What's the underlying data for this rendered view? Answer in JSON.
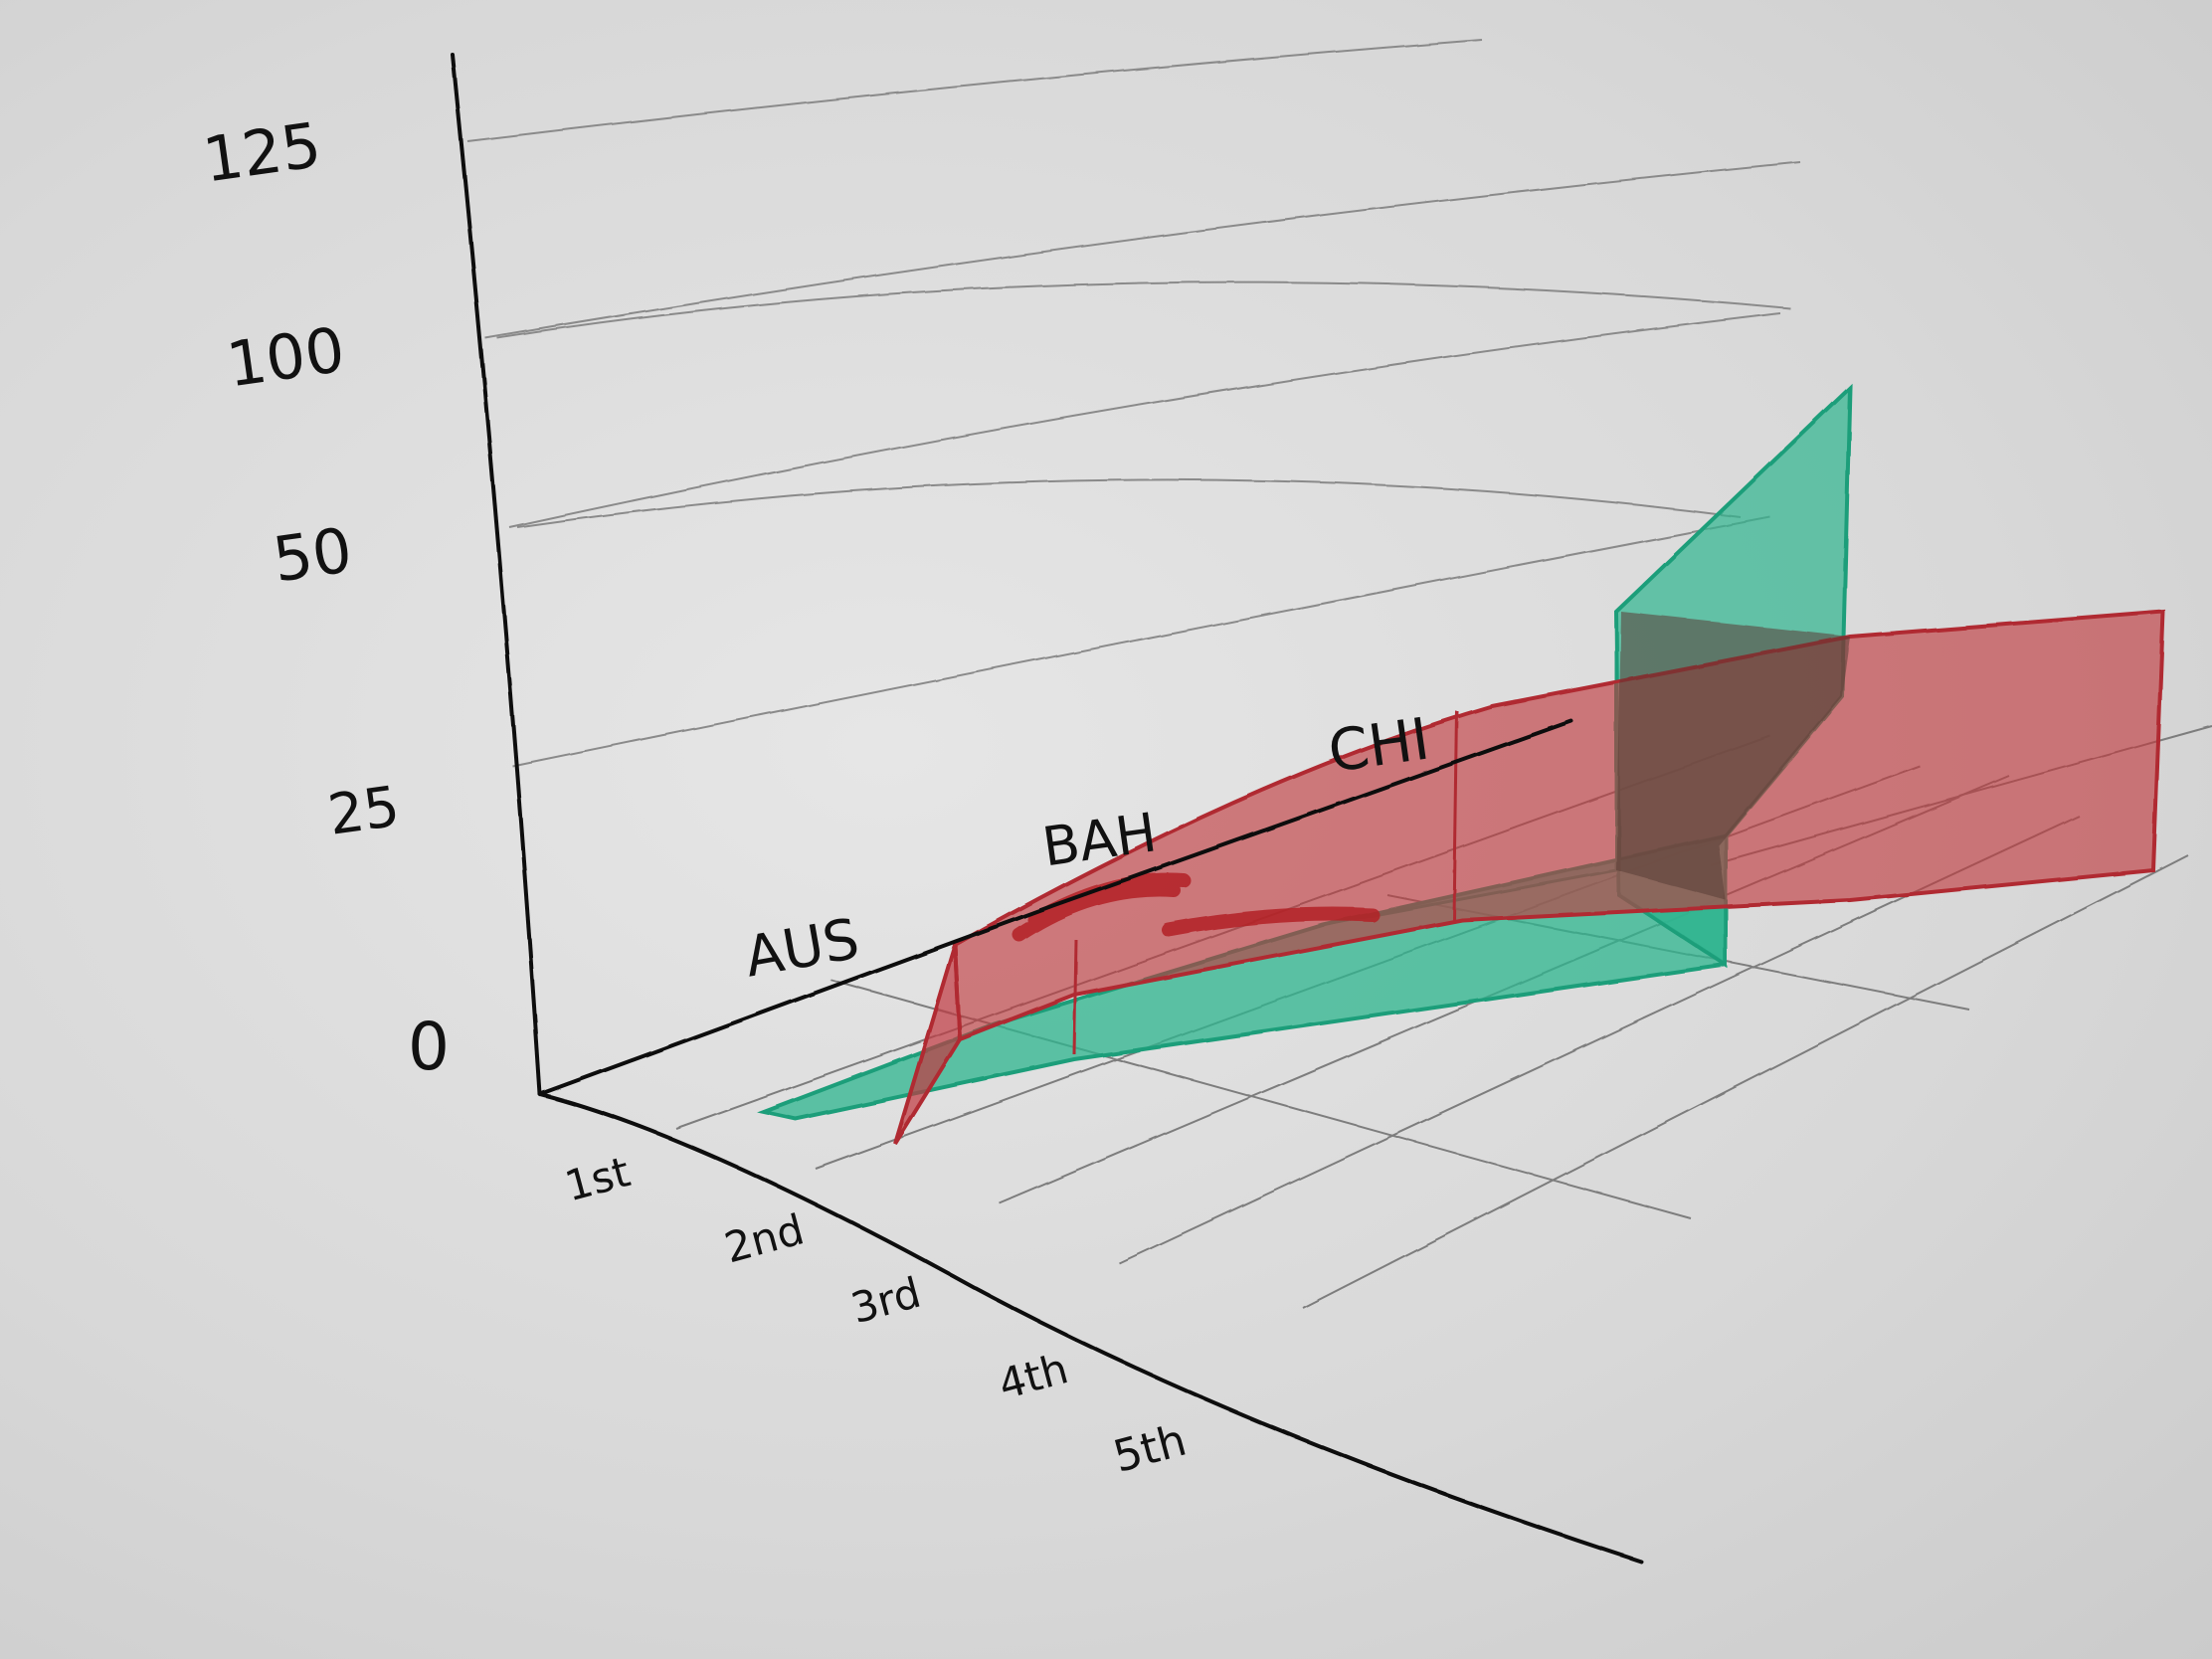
{
  "chart_data": {
    "type": "area",
    "style": "hand-drawn 3D ribbon chart",
    "title": "",
    "y_axis": {
      "tick_labels": [
        "0",
        "25",
        "50",
        "100",
        "125"
      ]
    },
    "x_axis": {
      "tick_labels": [
        "1st",
        "2nd",
        "3rd",
        "4th",
        "5th"
      ]
    },
    "depth_axis": {
      "tick_labels": [
        "AUS",
        "BAH",
        "CHI"
      ]
    },
    "categories": [
      "1st",
      "2nd",
      "3rd",
      "4th",
      "5th"
    ],
    "series": [
      {
        "color": "#2fb58f",
        "values": [
          3,
          6,
          10,
          20,
          95
        ]
      },
      {
        "color": "#c0393e",
        "values": [
          15,
          22,
          30,
          45,
          55
        ]
      }
    ],
    "grid": true,
    "legend": "none"
  }
}
